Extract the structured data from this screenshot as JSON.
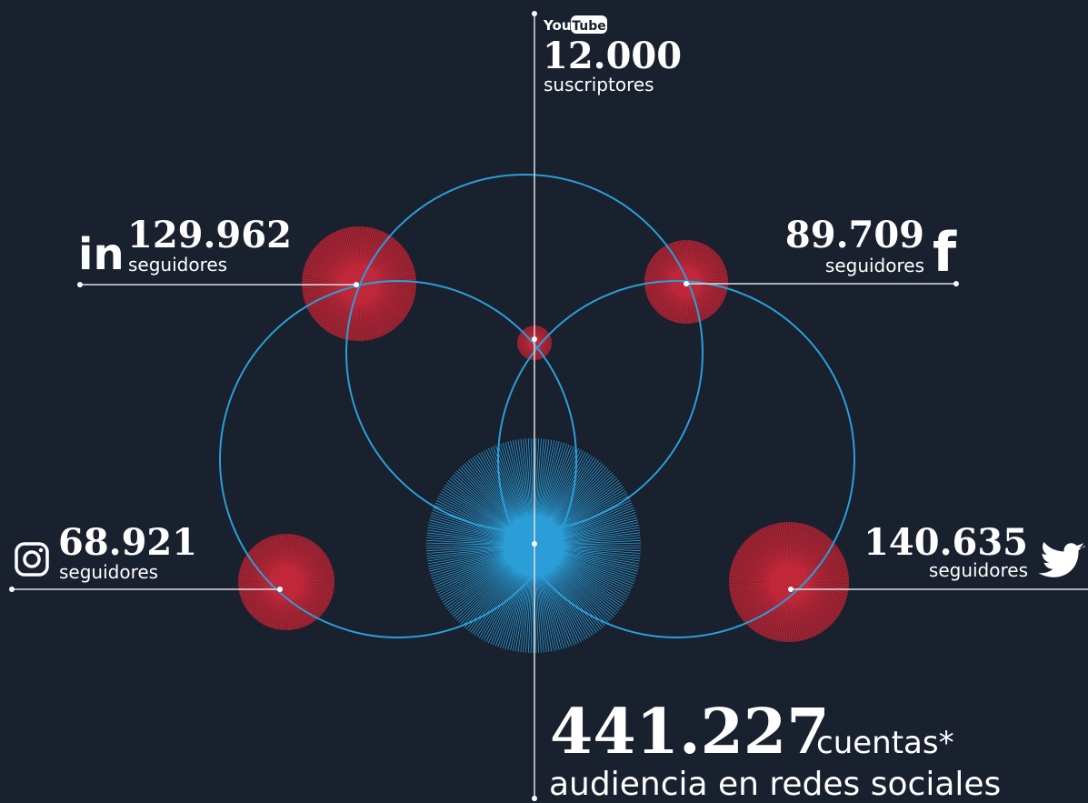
{
  "total": {
    "value": "441.227",
    "unit": "cuentas*",
    "caption": "audiencia en redes sociales"
  },
  "youtube": {
    "logo": [
      "You",
      "Tube"
    ],
    "value": "12.000",
    "caption": "suscriptores"
  },
  "linkedin": {
    "icon": "in",
    "value": "129.962",
    "caption": "seguidores"
  },
  "facebook": {
    "icon": "f",
    "value": "89.709",
    "caption": "seguidores"
  },
  "instagram": {
    "value": "68.921",
    "caption": "seguidores"
  },
  "twitter": {
    "value": "140.635",
    "caption": "seguidores"
  }
}
